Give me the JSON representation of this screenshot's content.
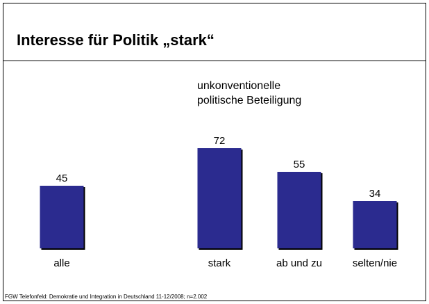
{
  "slide": {
    "title": "Interesse für Politik „stark“",
    "subtitle_line1": "unkonventionelle",
    "subtitle_line2": "politische Beteiligung",
    "source": "FGW Telefonfeld: Demokratie und Integration in Deutschland 11-12/2008; n=2.002"
  },
  "colors": {
    "bar_fill": "#2b2b8f",
    "bar_shadow": "#000000"
  },
  "chart_data": {
    "type": "bar",
    "categories": [
      "alle",
      "stark",
      "ab und zu",
      "selten/nie"
    ],
    "values": [
      45,
      72,
      55,
      34
    ],
    "ylim": [
      0,
      80
    ],
    "grid": false,
    "data_labels": true
  }
}
